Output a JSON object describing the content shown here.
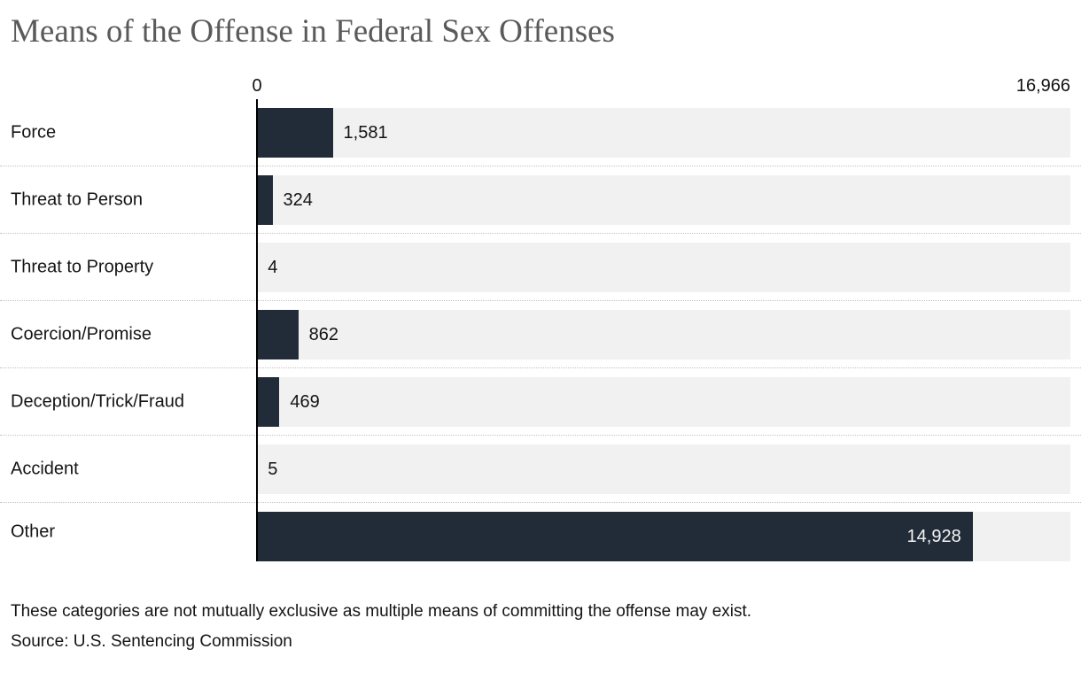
{
  "title": "Means of the Offense in Federal Sex Offenses",
  "colors": {
    "bar": "#222c38",
    "track": "#f1f1f1",
    "title_text": "#5a5a5a",
    "inside_value_text": "#f5f5f5",
    "outside_value_text": "#141414"
  },
  "axis": {
    "min_label": "0",
    "max_label": "16,966",
    "max_value": 16966
  },
  "chart_data": {
    "type": "bar",
    "orientation": "horizontal",
    "title": "Means of the Offense in Federal Sex Offenses",
    "categories": [
      "Force",
      "Threat to Person",
      "Threat to Property",
      "Coercion/Promise",
      "Deception/Trick/Fraud",
      "Accident",
      "Other"
    ],
    "values": [
      1581,
      324,
      4,
      862,
      469,
      5,
      14928
    ],
    "value_labels": [
      "1,581",
      "324",
      "4",
      "862",
      "469",
      "5",
      "14,928"
    ],
    "xlim": [
      0,
      16966
    ],
    "xlabel": "",
    "ylabel": "",
    "grid": false,
    "legend": false
  },
  "footer": {
    "note": "These categories are not mutually exclusive as multiple means of committing the offense may exist.",
    "source": "Source: U.S. Sentencing Commission"
  }
}
